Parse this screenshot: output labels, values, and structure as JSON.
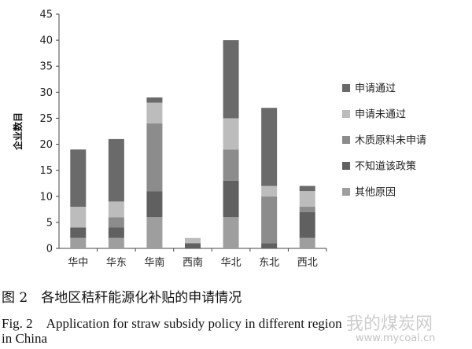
{
  "chart_data": {
    "type": "bar",
    "stacked": true,
    "ylabel": "企业数目",
    "xlabel": "",
    "ylim": [
      0,
      45
    ],
    "yticks": [
      0,
      5,
      10,
      15,
      20,
      25,
      30,
      35,
      40,
      45
    ],
    "grid": false,
    "legend": "right",
    "categories": [
      "华中",
      "华东",
      "华南",
      "西南",
      "华北",
      "东北",
      "西北"
    ],
    "series": [
      {
        "name": "其他原因",
        "color": "#9e9e9e",
        "values": [
          2,
          2,
          6,
          0,
          6,
          0,
          2
        ]
      },
      {
        "name": "不知道该政策",
        "color": "#606060",
        "values": [
          2,
          2,
          5,
          1,
          7,
          1,
          5
        ]
      },
      {
        "name": "木质原料未申请",
        "color": "#8c8c8c",
        "values": [
          0,
          2,
          13,
          0,
          6,
          9,
          1
        ]
      },
      {
        "name": "申请未通过",
        "color": "#bcbcbc",
        "values": [
          4,
          3,
          4,
          1,
          6,
          2,
          3
        ]
      },
      {
        "name": "申请通过",
        "color": "#6a6a6a",
        "values": [
          11,
          12,
          1,
          0,
          15,
          15,
          1
        ]
      }
    ]
  },
  "caption": {
    "cn": "图 2　各地区秸秆能源化补贴的申请情况",
    "en_line1": "Fig. 2　Application for straw subsidy policy in different region",
    "en_line2": "in China"
  },
  "watermark": {
    "cn": "我的煤炭网",
    "en": "www.mycoal.cn"
  }
}
